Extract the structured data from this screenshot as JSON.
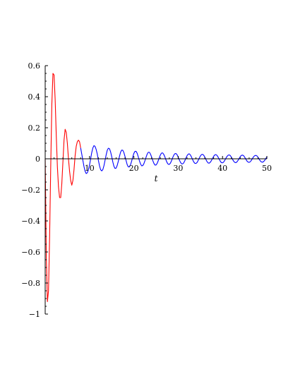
{
  "chart_data": {
    "type": "line",
    "xlabel": "t",
    "ylabel": "",
    "xlim": [
      0,
      50
    ],
    "ylim": [
      -1,
      0.6
    ],
    "x_ticks": [
      10,
      20,
      30,
      40,
      50
    ],
    "x_tick_labels": [
      "10",
      "20",
      "30",
      "40",
      "50"
    ],
    "y_ticks": [
      -1,
      -0.8,
      -0.6,
      -0.4,
      -0.2,
      0,
      0.2,
      0.4,
      0.6
    ],
    "y_tick_labels": [
      "-1",
      "-0.8",
      "-0.6",
      "-0.4",
      "-0.2",
      "0",
      "0.2",
      "0.4",
      "0.6"
    ],
    "grid": false,
    "series": [
      {
        "color": "#ff0000",
        "points": [
          [
            0,
            0
          ],
          [
            0.25,
            -0.62
          ],
          [
            0.5,
            -0.92
          ],
          [
            0.75,
            -0.85
          ],
          [
            1.0,
            -0.5
          ],
          [
            1.25,
            -0.05
          ],
          [
            1.5,
            0.35
          ],
          [
            1.75,
            0.55
          ],
          [
            2.0,
            0.54
          ],
          [
            2.25,
            0.38
          ],
          [
            2.5,
            0.15
          ],
          [
            2.75,
            -0.05
          ],
          [
            3.0,
            -0.18
          ],
          [
            3.25,
            -0.25
          ],
          [
            3.5,
            -0.25
          ],
          [
            3.75,
            -0.16
          ],
          [
            4.0,
            -0.02
          ],
          [
            4.25,
            0.12
          ],
          [
            4.5,
            0.19
          ],
          [
            4.75,
            0.17
          ],
          [
            5.0,
            0.1
          ],
          [
            5.25,
            0.0
          ],
          [
            5.5,
            -0.08
          ],
          [
            5.75,
            -0.14
          ],
          [
            6.0,
            -0.17
          ],
          [
            6.25,
            -0.14
          ],
          [
            6.5,
            -0.07
          ],
          [
            6.75,
            0.02
          ],
          [
            7.0,
            0.08
          ],
          [
            7.25,
            0.11
          ],
          [
            7.5,
            0.12
          ],
          [
            7.75,
            0.11
          ],
          [
            8.0,
            0.07
          ]
        ]
      },
      {
        "color": "#0000ff",
        "points": [
          [
            8.0,
            0.07
          ],
          [
            8.25,
            0.03
          ],
          [
            8.5,
            -0.01
          ],
          [
            8.75,
            -0.05
          ],
          [
            9.0,
            -0.08
          ],
          [
            9.25,
            -0.095
          ],
          [
            9.5,
            -0.09
          ],
          [
            9.75,
            -0.07
          ],
          [
            10.0,
            -0.04
          ],
          [
            10.25,
            0.0
          ],
          [
            10.5,
            0.04
          ],
          [
            10.75,
            0.07
          ],
          [
            11.0,
            0.085
          ],
          [
            11.25,
            0.08
          ],
          [
            11.5,
            0.06
          ],
          [
            11.75,
            0.03
          ],
          [
            12.0,
            -0.01
          ],
          [
            12.25,
            -0.045
          ],
          [
            12.5,
            -0.07
          ],
          [
            12.75,
            -0.078
          ],
          [
            13.0,
            -0.07
          ],
          [
            13.25,
            -0.045
          ],
          [
            13.5,
            -0.01
          ],
          [
            13.75,
            0.025
          ],
          [
            14.0,
            0.055
          ],
          [
            14.25,
            0.068
          ],
          [
            14.5,
            0.065
          ],
          [
            14.75,
            0.045
          ],
          [
            15.0,
            0.015
          ],
          [
            15.25,
            -0.02
          ],
          [
            15.5,
            -0.048
          ],
          [
            15.75,
            -0.062
          ],
          [
            16.0,
            -0.06
          ],
          [
            16.25,
            -0.042
          ],
          [
            16.5,
            -0.015
          ],
          [
            16.75,
            0.015
          ],
          [
            17.0,
            0.042
          ],
          [
            17.25,
            0.056
          ],
          [
            17.5,
            0.055
          ],
          [
            17.75,
            0.04
          ],
          [
            18.0,
            0.015
          ],
          [
            18.25,
            -0.012
          ],
          [
            18.5,
            -0.038
          ],
          [
            18.75,
            -0.052
          ],
          [
            19.0,
            -0.052
          ],
          [
            19.25,
            -0.038
          ],
          [
            19.5,
            -0.015
          ],
          [
            19.75,
            0.012
          ],
          [
            20.0,
            0.035
          ],
          [
            20.25,
            0.048
          ],
          [
            20.5,
            0.048
          ],
          [
            20.75,
            0.035
          ],
          [
            21.0,
            0.012
          ],
          [
            21.25,
            -0.012
          ],
          [
            21.5,
            -0.033
          ],
          [
            21.75,
            -0.045
          ],
          [
            22.0,
            -0.044
          ],
          [
            22.25,
            -0.032
          ],
          [
            22.5,
            -0.012
          ],
          [
            22.75,
            0.01
          ],
          [
            23.0,
            0.03
          ],
          [
            23.25,
            0.042
          ],
          [
            23.5,
            0.042
          ],
          [
            23.75,
            0.03
          ],
          [
            24.0,
            0.012
          ],
          [
            24.25,
            -0.01
          ],
          [
            24.5,
            -0.028
          ],
          [
            24.75,
            -0.04
          ],
          [
            25.0,
            -0.04
          ],
          [
            25.25,
            -0.03
          ],
          [
            25.5,
            -0.012
          ],
          [
            25.75,
            0.008
          ],
          [
            26.0,
            0.026
          ],
          [
            26.25,
            0.037
          ],
          [
            26.5,
            0.038
          ],
          [
            26.75,
            0.028
          ],
          [
            27.0,
            0.012
          ],
          [
            27.25,
            -0.008
          ],
          [
            27.5,
            -0.025
          ],
          [
            27.75,
            -0.035
          ],
          [
            28.0,
            -0.036
          ],
          [
            28.25,
            -0.028
          ],
          [
            28.5,
            -0.012
          ],
          [
            28.75,
            0.007
          ],
          [
            29.0,
            0.023
          ],
          [
            29.25,
            0.033
          ],
          [
            29.5,
            0.034
          ],
          [
            29.75,
            0.026
          ],
          [
            30.0,
            0.011
          ],
          [
            30.25,
            -0.007
          ],
          [
            30.5,
            -0.022
          ],
          [
            30.75,
            -0.032
          ],
          [
            31.0,
            -0.033
          ],
          [
            31.25,
            -0.026
          ],
          [
            31.5,
            -0.012
          ],
          [
            31.75,
            0.005
          ],
          [
            32.0,
            0.02
          ],
          [
            32.25,
            0.03
          ],
          [
            32.5,
            0.032
          ],
          [
            32.75,
            0.025
          ],
          [
            33.0,
            0.011
          ],
          [
            33.25,
            -0.005
          ],
          [
            33.5,
            -0.02
          ],
          [
            33.75,
            -0.029
          ],
          [
            34.0,
            -0.03
          ],
          [
            34.25,
            -0.024
          ],
          [
            34.5,
            -0.011
          ],
          [
            34.75,
            0.004
          ],
          [
            35.0,
            0.018
          ],
          [
            35.25,
            0.027
          ],
          [
            35.5,
            0.029
          ],
          [
            35.75,
            0.023
          ],
          [
            36.0,
            0.011
          ],
          [
            36.25,
            -0.004
          ],
          [
            36.5,
            -0.018
          ],
          [
            36.75,
            -0.027
          ],
          [
            37.0,
            -0.028
          ],
          [
            37.25,
            -0.022
          ],
          [
            37.5,
            -0.011
          ],
          [
            37.75,
            0.003
          ],
          [
            38.0,
            0.016
          ],
          [
            38.25,
            0.025
          ],
          [
            38.5,
            0.027
          ],
          [
            38.75,
            0.022
          ],
          [
            39.0,
            0.011
          ],
          [
            39.25,
            -0.003
          ],
          [
            39.5,
            -0.016
          ],
          [
            39.75,
            -0.025
          ],
          [
            40.0,
            -0.026
          ],
          [
            40.25,
            -0.021
          ],
          [
            40.5,
            -0.01
          ],
          [
            40.75,
            0.003
          ],
          [
            41.0,
            0.015
          ],
          [
            41.25,
            0.023
          ],
          [
            41.5,
            0.025
          ],
          [
            41.75,
            0.021
          ],
          [
            42.0,
            0.01
          ],
          [
            42.25,
            -0.003
          ],
          [
            42.5,
            -0.015
          ],
          [
            42.75,
            -0.023
          ],
          [
            43.0,
            -0.025
          ],
          [
            43.25,
            -0.02
          ],
          [
            43.5,
            -0.01
          ],
          [
            43.75,
            0.002
          ],
          [
            44.0,
            0.014
          ],
          [
            44.25,
            0.022
          ],
          [
            44.5,
            0.024
          ],
          [
            44.75,
            0.02
          ],
          [
            45.0,
            0.01
          ],
          [
            45.25,
            -0.002
          ],
          [
            45.5,
            -0.014
          ],
          [
            45.75,
            -0.021
          ],
          [
            46.0,
            -0.023
          ],
          [
            46.25,
            -0.019
          ],
          [
            46.5,
            -0.01
          ],
          [
            46.75,
            0.002
          ],
          [
            47.0,
            0.013
          ],
          [
            47.25,
            0.02
          ],
          [
            47.5,
            0.022
          ],
          [
            47.75,
            0.019
          ],
          [
            48.0,
            0.01
          ],
          [
            48.25,
            -0.002
          ],
          [
            48.5,
            -0.013
          ],
          [
            48.75,
            -0.02
          ],
          [
            49.0,
            -0.022
          ],
          [
            49.25,
            -0.018
          ],
          [
            49.5,
            -0.01
          ],
          [
            49.75,
            0.001
          ],
          [
            50.0,
            0.012
          ]
        ]
      }
    ]
  }
}
